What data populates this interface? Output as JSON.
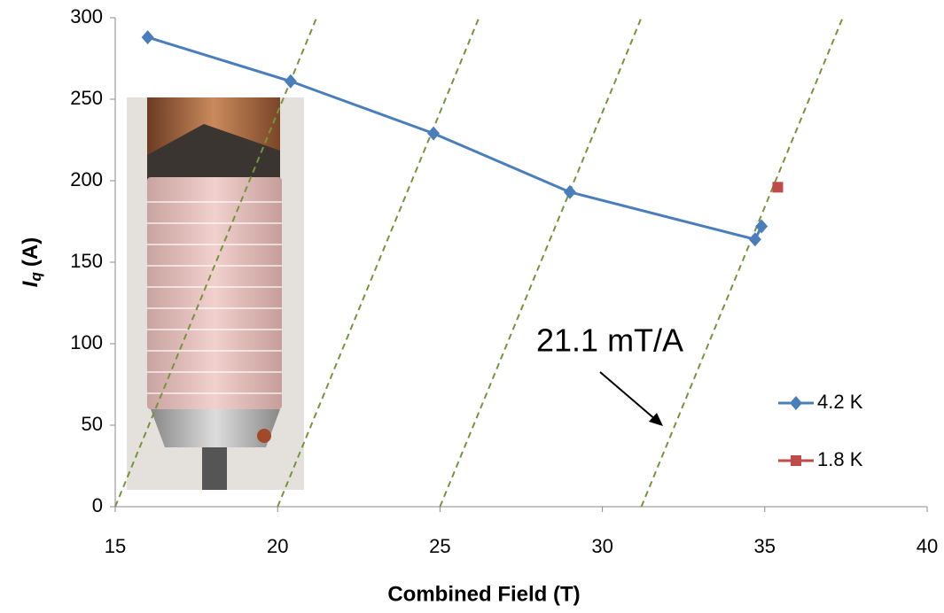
{
  "chart_data": {
    "type": "line",
    "xlabel": "Combined Field (T)",
    "ylabel_symbol": "I",
    "ylabel_subscript": "q",
    "ylabel_unit": "(A)",
    "xlim": [
      15,
      40
    ],
    "xticks": [
      15,
      20,
      25,
      30,
      35,
      40
    ],
    "ylim": [
      0,
      300
    ],
    "yticks": [
      0,
      50,
      100,
      150,
      200,
      250,
      300
    ],
    "grid": false,
    "legend": "right",
    "series": [
      {
        "name": "4.2 K",
        "color": "#4a7ebb",
        "marker": "diamond",
        "x": [
          16.0,
          20.4,
          24.8,
          29.0,
          34.7,
          34.9
        ],
        "values": [
          288,
          261,
          229,
          193,
          164,
          172
        ]
      },
      {
        "name": "1.8 K",
        "color": "#be4b48",
        "marker": "square",
        "x": [
          35.4
        ],
        "values": [
          196
        ]
      }
    ],
    "reference_lines": {
      "color": "#77933c",
      "lines": [
        {
          "x": [
            15.0,
            21.2
          ],
          "y": [
            0,
            300
          ]
        },
        {
          "x": [
            20.0,
            26.2
          ],
          "y": [
            0,
            300
          ]
        },
        {
          "x": [
            25.0,
            31.2
          ],
          "y": [
            0,
            300
          ]
        },
        {
          "x": [
            31.2,
            37.4
          ],
          "y": [
            0,
            300
          ]
        }
      ]
    },
    "annotation": "21.1 mT/A"
  }
}
